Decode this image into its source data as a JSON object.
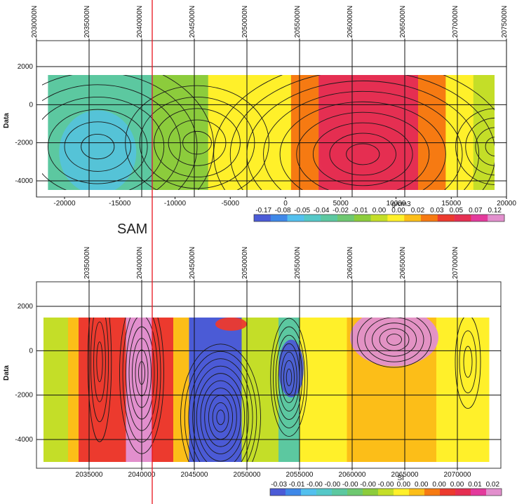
{
  "annotation": {
    "label": "SAM",
    "line_color": "#e8141e"
  },
  "chart_data": [
    {
      "type": "heatmap",
      "title": "",
      "ylabel": "Data",
      "xlabel": "",
      "top_axis_ticks": [
        "2030000N",
        "2035000N",
        "2040000N",
        "2045000N",
        "2050000N",
        "2055000N",
        "2060000N",
        "2065000N",
        "2070000N",
        "2075000N"
      ],
      "x_ticks": [
        "-20000",
        "-15000",
        "-10000",
        "-5000",
        "0",
        "5000",
        "10000",
        "15000",
        "20000"
      ],
      "y_ticks": [
        "2000",
        "0",
        "-2000",
        "-4000"
      ],
      "xlim": [
        -22000,
        22000
      ],
      "ylim": [
        -5500,
        3500
      ],
      "grid": true,
      "colorbar": {
        "unit": "g/cm3",
        "labels": [
          "-0.17",
          "-0.08",
          "-0.05",
          "-0.04",
          "-0.02",
          "-0.01",
          "0.00",
          "0.00",
          "0.02",
          "0.03",
          "0.05",
          "0.07",
          "0.12"
        ],
        "colors": [
          "#4b5bd6",
          "#3f88e8",
          "#53c0ee",
          "#55c8c8",
          "#5cc8a0",
          "#6ec870",
          "#8ccc3c",
          "#c4de28",
          "#fff02a",
          "#fcbe18",
          "#f67a12",
          "#ec3a2e",
          "#e52f52",
          "#e33a9c",
          "#e28fcd"
        ]
      },
      "bands": [
        {
          "x0": -21500,
          "x1": -12000,
          "v": -0.08
        },
        {
          "x0": -12000,
          "x1": -7000,
          "v": -0.05
        },
        {
          "x0": -7000,
          "x1": -2000,
          "v": -0.01
        },
        {
          "x0": -2000,
          "x1": 500,
          "v": 0.0
        },
        {
          "x0": 500,
          "x1": 3000,
          "v": 0.03
        },
        {
          "x0": 3000,
          "x1": 12000,
          "v": 0.07
        },
        {
          "x0": 12000,
          "x1": 14500,
          "v": 0.03
        },
        {
          "x0": 14500,
          "x1": 17000,
          "v": 0.0
        },
        {
          "x0": 17000,
          "x1": 21500,
          "v": -0.02
        }
      ]
    },
    {
      "type": "heatmap",
      "title": "",
      "ylabel": "Data",
      "xlabel": "",
      "top_axis_ticks": [
        "2035000N",
        "2040000N",
        "2045000N",
        "2050000N",
        "2055000N",
        "2060000N",
        "2065000N",
        "2070000N"
      ],
      "x_ticks": [
        "2035000",
        "2040000",
        "2045000",
        "2050000",
        "2055000",
        "2060000",
        "2065000",
        "2070000"
      ],
      "y_ticks": [
        "2000",
        "0",
        "-2000",
        "-4000"
      ],
      "xlim": [
        2030000,
        2075000
      ],
      "ylim": [
        -5500,
        3500
      ],
      "grid": true,
      "colorbar": {
        "unit": "SI",
        "labels": [
          "-0.03",
          "-0.01",
          "-0.00",
          "-0.00",
          "-0.00",
          "-0.00",
          "-0.00",
          "0.00",
          "0.00",
          "0.00",
          "0.00",
          "0.01",
          "0.02"
        ],
        "colors": [
          "#4b5bd6",
          "#3f88e8",
          "#53c0ee",
          "#55c8c8",
          "#5cc8a0",
          "#6ec870",
          "#8ccc3c",
          "#c4de28",
          "#fff02a",
          "#fcbe18",
          "#f67a12",
          "#ec3a2e",
          "#e52f52",
          "#e33a9c",
          "#e28fcd"
        ]
      },
      "bands": [
        {
          "x0": 2030500,
          "x1": 2033000,
          "v": -0.005
        },
        {
          "x0": 2033000,
          "x1": 2034000,
          "v": 0.003
        },
        {
          "x0": 2034000,
          "x1": 2036000,
          "v": 0.01
        },
        {
          "x0": 2036000,
          "x1": 2038500,
          "v": 0.008
        },
        {
          "x0": 2038500,
          "x1": 2041000,
          "v": 0.02
        },
        {
          "x0": 2041000,
          "x1": 2043000,
          "v": 0.01
        },
        {
          "x0": 2043000,
          "x1": 2044500,
          "v": 0.002
        },
        {
          "x0": 2044500,
          "x1": 2049500,
          "v": -0.03
        },
        {
          "x0": 2049500,
          "x1": 2053000,
          "v": -0.004
        },
        {
          "x0": 2053000,
          "x1": 2055000,
          "v": -0.015
        },
        {
          "x0": 2055000,
          "x1": 2059500,
          "v": -0.002
        },
        {
          "x0": 2059500,
          "x1": 2068000,
          "v": 0.0
        },
        {
          "x0": 2068000,
          "x1": 2073000,
          "v": -0.002
        }
      ],
      "anomalies": [
        {
          "cx": 2064000,
          "cy": 600,
          "rx": 4200,
          "ry": 1300,
          "v": 0.02
        },
        {
          "cx": 2047000,
          "cy": -2500,
          "rx": 2500,
          "ry": 2400,
          "v": -0.03
        },
        {
          "cx": 2054200,
          "cy": -800,
          "rx": 1200,
          "ry": 1300,
          "v": -0.03
        },
        {
          "cx": 2048500,
          "cy": 1200,
          "rx": 1500,
          "ry": 300,
          "v": 0.01
        }
      ]
    }
  ]
}
